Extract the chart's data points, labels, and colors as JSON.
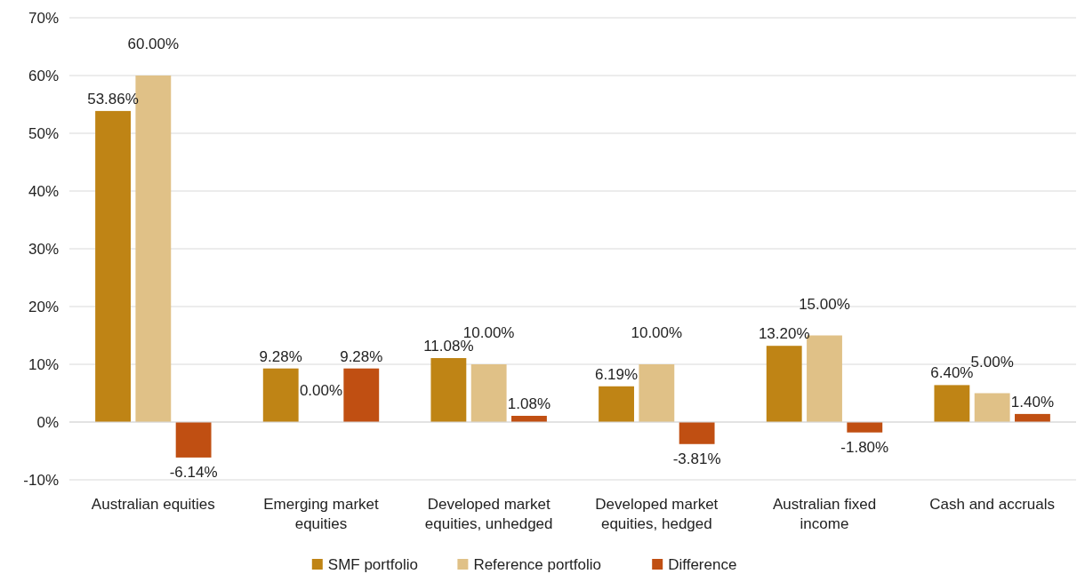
{
  "chart_data": {
    "type": "bar",
    "categories": [
      "Australian equities",
      "Emerging market equities",
      "Developed market equities, unhedged",
      "Developed market equities, hedged",
      "Australian fixed income",
      "Cash and accruals"
    ],
    "series": [
      {
        "name": "SMF portfolio",
        "color": "#bf8415",
        "values": [
          53.86,
          9.28,
          11.08,
          6.19,
          13.2,
          6.4
        ],
        "value_labels": [
          "53.86%",
          "9.28%",
          "11.08%",
          "6.19%",
          "13.20%",
          "6.40%"
        ]
      },
      {
        "name": "Reference portfolio",
        "color": "#e0c187",
        "values": [
          60,
          0,
          10,
          10,
          15,
          5
        ],
        "value_labels": [
          "60.00%",
          "0.00%",
          "10.00%",
          "10.00%",
          "15.00%",
          "5.00%"
        ]
      },
      {
        "name": "Difference",
        "color": "#c04f12",
        "values": [
          -6.14,
          9.28,
          1.08,
          -3.81,
          -1.8,
          1.4
        ],
        "value_labels": [
          "-6.14%",
          "9.28%",
          "1.08%",
          "-3.81%",
          "-1.80%",
          "1.40%"
        ]
      }
    ],
    "ylim": [
      -10,
      70
    ],
    "yticks": [
      {
        "value": -10,
        "label": "-10%"
      },
      {
        "value": 0,
        "label": "0%"
      },
      {
        "value": 10,
        "label": "10%"
      },
      {
        "value": 20,
        "label": "20%"
      },
      {
        "value": 30,
        "label": "30%"
      },
      {
        "value": 40,
        "label": "40%"
      },
      {
        "value": 50,
        "label": "50%"
      },
      {
        "value": 60,
        "label": "60%"
      },
      {
        "value": 70,
        "label": "70%"
      }
    ],
    "grid": "y",
    "legend": "bottom"
  }
}
